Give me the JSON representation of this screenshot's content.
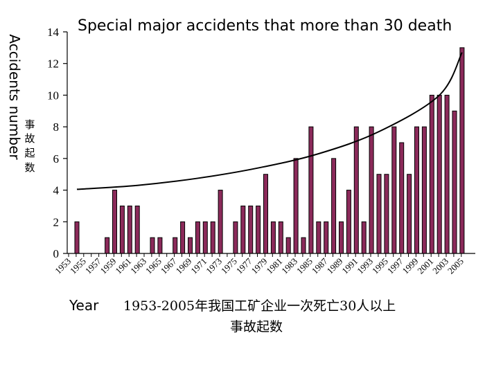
{
  "chart_data": {
    "type": "bar",
    "title": "Special major accidents that more than 30 death",
    "ylabel": "Accidents number",
    "ylabel_cn": [
      "事",
      "故",
      "起",
      "数"
    ],
    "xlabel": "Year",
    "xlabel_cn": [
      "1953-2005年我国工矿企业一次死亡30人以上",
      "事故起数"
    ],
    "ylim": [
      0,
      14
    ],
    "yticks": [
      0,
      2,
      4,
      6,
      8,
      10,
      12,
      14
    ],
    "x_tick_labels": [
      "1953",
      "1955",
      "1957",
      "1959",
      "1961",
      "1963",
      "1965",
      "1967",
      "1969",
      "1971",
      "1973",
      "1975",
      "1977",
      "1979",
      "1981",
      "1983",
      "1985",
      "1987",
      "1989",
      "1991",
      "1993",
      "1995",
      "1997",
      "1999",
      "2001",
      "2003",
      "2005"
    ],
    "categories": [
      1953,
      1954,
      1955,
      1956,
      1957,
      1958,
      1959,
      1960,
      1961,
      1962,
      1963,
      1964,
      1965,
      1966,
      1967,
      1968,
      1969,
      1970,
      1971,
      1972,
      1973,
      1974,
      1975,
      1976,
      1977,
      1978,
      1979,
      1980,
      1981,
      1982,
      1983,
      1984,
      1985,
      1986,
      1987,
      1988,
      1989,
      1990,
      1991,
      1992,
      1993,
      1994,
      1995,
      1996,
      1997,
      1998,
      1999,
      2000,
      2001,
      2002,
      2003,
      2004,
      2005
    ],
    "values": [
      2,
      0,
      0,
      0,
      1,
      4,
      3,
      3,
      3,
      0,
      1,
      1,
      0,
      1,
      2,
      1,
      2,
      2,
      2,
      4,
      0,
      2,
      3,
      3,
      3,
      5,
      2,
      2,
      1,
      6,
      1,
      8,
      2,
      2,
      6,
      2,
      4,
      8,
      2,
      8,
      5,
      5,
      8,
      7,
      5,
      8,
      8,
      10,
      10,
      10,
      9,
      13,
      0
    ],
    "bar_color": "#8b2a5a",
    "trend_line": {
      "type": "exponential",
      "x": [
        1953,
        1961,
        1969,
        1977,
        1985,
        1993,
        2001,
        2004
      ],
      "y": [
        4.05,
        4.3,
        4.75,
        5.4,
        6.3,
        7.7,
        10.0,
        12.7
      ]
    }
  }
}
